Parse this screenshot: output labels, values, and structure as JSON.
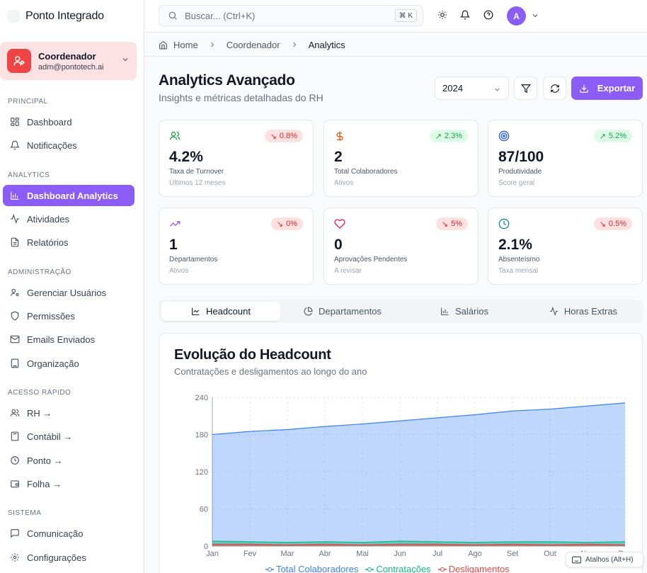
{
  "app": {
    "name": "Ponto Integrado"
  },
  "user": {
    "role": "Coordenador",
    "email": "adm@pontotech.ai",
    "avatar_initial": "A"
  },
  "search": {
    "placeholder": "Buscar... (Ctrl+K)",
    "shortcut": "⌘ K"
  },
  "sidebar": {
    "sections": {
      "principal": "PRINCIPAL",
      "analytics": "ANALYTICS",
      "admin": "ADMINISTRAÇÃO",
      "quick": "ACESSO RÁPIDO",
      "system": "SISTEMA"
    },
    "items": {
      "dashboard": "Dashboard",
      "notificacoes": "Notificações",
      "dashboard_analytics": "Dashboard Analytics",
      "atividades": "Atividades",
      "relatorios": "Relatórios",
      "gerenciar_usuarios": "Gerenciar Usuários",
      "permissoes": "Permissões",
      "emails_enviados": "Emails Enviados",
      "organizacao": "Organização",
      "rh": "RH →",
      "contabil": "Contábil →",
      "ponto": "Ponto →",
      "folha": "Folha →",
      "comunicacao": "Comunicação",
      "configuracoes": "Configurações"
    },
    "active": "dashboard_analytics"
  },
  "breadcrumb": {
    "home": "Home",
    "level1": "Coordenador",
    "current": "Analytics"
  },
  "page": {
    "title": "Analytics Avançado",
    "subtitle": "Insights e métricas detalhadas do RH",
    "year": "2024",
    "export_label": "Exportar"
  },
  "kpis": [
    {
      "icon": "users-icon",
      "value": "4.2%",
      "label": "Taxa de Turnover",
      "sub": "Últimos 12 meses",
      "trend": "down",
      "delta": "0.8%"
    },
    {
      "icon": "dollar-icon",
      "value": "2",
      "label": "Total Colaboradores",
      "sub": "Ativos",
      "trend": "up",
      "delta": "2.3%"
    },
    {
      "icon": "target-icon",
      "value": "87/100",
      "label": "Produtividade",
      "sub": "Score geral",
      "trend": "up",
      "delta": "5.2%"
    },
    {
      "icon": "trending-up-icon",
      "value": "1",
      "label": "Departamentos",
      "sub": "Ativos",
      "trend": "down",
      "delta": "0%"
    },
    {
      "icon": "heart-icon",
      "value": "0",
      "label": "Aprovações Pendentes",
      "sub": "A revisar",
      "trend": "down",
      "delta": "5%"
    },
    {
      "icon": "clock-icon",
      "value": "2.1%",
      "label": "Absenteísmo",
      "sub": "Taxa mensal",
      "trend": "down",
      "delta": "0.5%"
    }
  ],
  "tabs": [
    "Headcount",
    "Departamentos",
    "Salários",
    "Horas Extras"
  ],
  "active_tab": "Headcount",
  "chart_title": "Evolução do Headcount",
  "chart_subtitle": "Contratações e desligamentos ao longo do ano",
  "shortcut_hint": "Atalhos (Alt+H)",
  "colors": {
    "accent": "#8b5cf6",
    "total": "#3b82f6",
    "hires": "#10b981",
    "exits": "#ef4444"
  },
  "chart_data": {
    "type": "area",
    "categories": [
      "Jan",
      "Fev",
      "Mar",
      "Abr",
      "Mai",
      "Jun",
      "Jul",
      "Ago",
      "Set",
      "Out",
      "Nov",
      "Dez"
    ],
    "series": [
      {
        "name": "Total Colaboradores",
        "values": [
          180,
          185,
          188,
          193,
          197,
          202,
          207,
          212,
          218,
          221,
          226,
          231
        ]
      },
      {
        "name": "Contratações",
        "values": [
          8,
          7,
          6,
          7,
          6,
          8,
          7,
          6,
          7,
          7,
          6,
          7
        ]
      },
      {
        "name": "Desligamentos",
        "values": [
          3,
          3,
          2,
          3,
          2,
          3,
          3,
          2,
          3,
          2,
          3,
          2
        ]
      }
    ],
    "yticks": [
      0,
      60,
      120,
      180,
      240
    ],
    "ylim": [
      0,
      240
    ],
    "grid": true,
    "legend": "bottom"
  }
}
